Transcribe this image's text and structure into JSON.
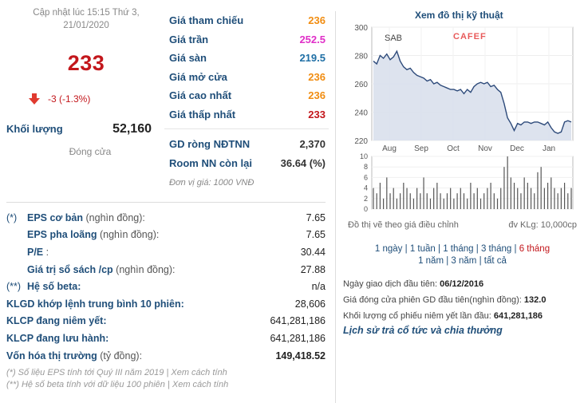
{
  "header": {
    "updated": "Cập nhật lúc 15:15 Thứ 3,",
    "updated_date": "21/01/2020",
    "price": "233",
    "change": "-3 (-1.3%)",
    "volume_label": "Khối lượng",
    "volume_value": "52,160",
    "status": "Đóng cửa"
  },
  "prices": [
    {
      "label": "Giá tham chiếu",
      "value": "236",
      "color": "#f18d12"
    },
    {
      "label": "Giá trần",
      "value": "252.5",
      "color": "#e02fc8"
    },
    {
      "label": "Giá sàn",
      "value": "219.5",
      "color": "#1f6fa5"
    },
    {
      "label": "Giá mở cửa",
      "value": "236",
      "color": "#f18d12"
    },
    {
      "label": "Giá cao nhất",
      "value": "236",
      "color": "#f18d12"
    },
    {
      "label": "Giá thấp nhất",
      "value": "233",
      "color": "#c3171c"
    }
  ],
  "foreign": [
    {
      "label": "GD ròng NĐTNN",
      "value": "2,370"
    },
    {
      "label": "Room NN còn lại",
      "value": "36.64 (%)"
    }
  ],
  "unit_note": "Đơn vị giá: 1000 VNĐ",
  "fundamentals": [
    {
      "prefix": "(*)",
      "label": "EPS cơ bản",
      "sub": " (nghìn đồng):",
      "value": "7.65",
      "bold_label": true,
      "bold_value": false
    },
    {
      "prefix": "",
      "label": "EPS pha loãng",
      "sub": " (nghìn đồng):",
      "value": "7.65",
      "bold_label": true,
      "bold_value": false
    },
    {
      "prefix": "",
      "label": "P/E",
      "sub": " :",
      "value": "30.44",
      "bold_label": true,
      "bold_value": false
    },
    {
      "prefix": "",
      "label": "Giá trị sổ sách /cp",
      "sub": " (nghìn đồng):",
      "value": "27.88",
      "bold_label": true,
      "bold_value": false
    },
    {
      "prefix": "(**)",
      "label": "Hệ số beta:",
      "sub": "",
      "value": "n/a",
      "bold_label": true,
      "bold_value": false
    },
    {
      "prefix": "",
      "label": "KLGD khớp lệnh trung bình 10 phiên:",
      "sub": "",
      "value": "28,606",
      "bold_label": true,
      "bold_value": false
    },
    {
      "prefix": "",
      "label": "KLCP đang niêm yết:",
      "sub": "",
      "value": "641,281,186",
      "bold_label": true,
      "bold_value": false
    },
    {
      "prefix": "",
      "label": "KLCP đang lưu hành:",
      "sub": "",
      "value": "641,281,186",
      "bold_label": true,
      "bold_value": false
    },
    {
      "prefix": "",
      "label": "Vốn hóa thị trường",
      "sub": " (tỷ đồng):",
      "value": "149,418.52",
      "bold_label": true,
      "bold_value": true
    }
  ],
  "notes": [
    "(*) Số liệu EPS tính tới Quý III năm 2019 | Xem cách tính",
    "(**) Hệ số beta tính với dữ liệu 100 phiên | Xem cách tính"
  ],
  "chart": {
    "title": "Xem đồ thị kỹ thuật",
    "symbol": "SAB",
    "watermark": "CAFEF",
    "adjusted_note": "Đồ thị vẽ theo giá điều chỉnh",
    "volume_unit": "đv KLg: 10,000cp",
    "periods_line1": [
      "1 ngày",
      "1 tuần",
      "1 tháng",
      "3 tháng",
      "6 tháng"
    ],
    "periods_line2": [
      "1 năm",
      "3 năm",
      "tất cả"
    ],
    "active_period": "6 tháng"
  },
  "chart_data": {
    "type": "line",
    "series": [
      {
        "name": "SAB",
        "values": [
          276,
          274,
          280,
          278,
          281,
          277,
          279,
          283,
          276,
          272,
          270,
          271,
          268,
          266,
          265,
          264,
          262,
          263,
          260,
          261,
          259,
          258,
          257,
          256,
          256,
          255,
          256,
          253,
          256,
          254,
          258,
          260,
          261,
          260,
          261,
          258,
          259,
          256,
          254,
          246,
          236,
          232,
          227,
          232,
          231,
          233,
          233,
          232,
          233,
          233,
          232,
          231,
          233,
          229,
          226,
          225,
          226,
          233,
          234,
          233
        ]
      }
    ],
    "x_ticks": [
      "Aug",
      "Sep",
      "Oct",
      "Nov",
      "Dec",
      "Jan"
    ],
    "y_ticks": [
      220,
      240,
      260,
      280,
      300
    ],
    "ylim": [
      220,
      300
    ],
    "volume": [
      4,
      3,
      5,
      2,
      6,
      3,
      4,
      2,
      3,
      5,
      4,
      3,
      2,
      4,
      3,
      6,
      3,
      2,
      4,
      5,
      3,
      2,
      3,
      4,
      2,
      3,
      4,
      3,
      2,
      5,
      3,
      4,
      2,
      3,
      4,
      5,
      3,
      2,
      4,
      8,
      10,
      6,
      5,
      4,
      3,
      6,
      5,
      4,
      3,
      7,
      8,
      4,
      5,
      6,
      4,
      3,
      4,
      5,
      3,
      4
    ],
    "volume_ticks": [
      0,
      2,
      4,
      6,
      8,
      10
    ],
    "volume_ylim": [
      0,
      10
    ]
  },
  "listing": {
    "first_day_label": "Ngày giao dịch đầu tiên:",
    "first_day_value": "06/12/2016",
    "first_price_label": "Giá đóng cửa phiên GD đầu tiên(nghìn đồng):",
    "first_price_value": "132.0",
    "first_volume_label": "Khối lượng cổ phiếu niêm yết lần đầu:",
    "first_volume_value": "641,281,186",
    "dividend_link": "Lịch sử trả cổ tức và chia thưởng"
  }
}
